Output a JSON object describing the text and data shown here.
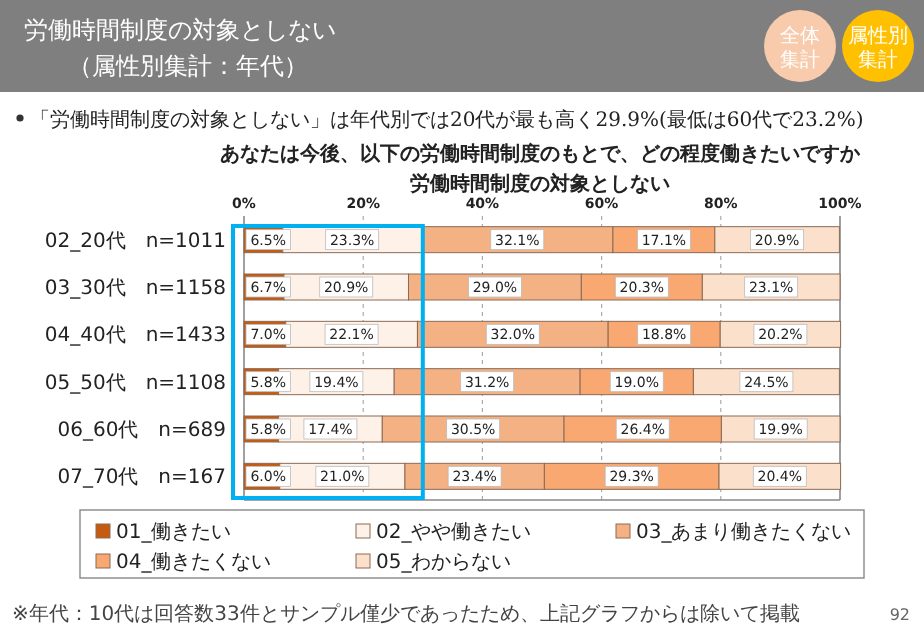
{
  "chart_data": {
    "type": "bar",
    "orientation": "horizontal",
    "stacked": true,
    "title": "労働時間制度の対象としない",
    "subtitle": "（属性別集計：年代）",
    "annotations": [
      "「労働時間制度の対象としない」は年代別では20代が最も高く29.9%(最低は60代で23.2%)",
      "あなたは今後、以下の労働時間制度のもとで、どの程度働きたいですか",
      "労働時間制度の対象としない",
      "※年代：10代は回答数33件とサンプル僅少であったため、上記グラフからは除いて掲載",
      "92",
      "全体",
      "集計",
      "属性別",
      "集計"
    ],
    "categories": [
      "02_20代　n=1011",
      "03_30代　n=1158",
      "04_40代　n=1433",
      "05_50代　n=1108",
      "06_60代　n=689",
      "07_70代　n=167"
    ],
    "xlim": [
      0,
      100
    ],
    "xticks": [
      {
        "value": 0,
        "label": "0%"
      },
      {
        "value": 20,
        "label": "20%"
      },
      {
        "value": 40,
        "label": "40%"
      },
      {
        "value": 60,
        "label": "60%"
      },
      {
        "value": 80,
        "label": "80%"
      },
      {
        "value": 100,
        "label": "100%"
      }
    ],
    "grid": "x",
    "legend": "bottom",
    "series": [
      {
        "name": "01_働きたい",
        "color": "#c55a11",
        "values": [
          6.5,
          6.7,
          7.0,
          5.8,
          5.8,
          6.0
        ],
        "value_labels": [
          "6.5%",
          "6.7%",
          "7.0%",
          "5.8%",
          "5.8%",
          "6.0%"
        ]
      },
      {
        "name": "02_やや働きたい",
        "color": "#fdf1e8",
        "values": [
          23.3,
          20.9,
          22.1,
          19.4,
          17.4,
          21.0
        ],
        "value_labels": [
          "23.3%",
          "20.9%",
          "22.1%",
          "19.4%",
          "17.4%",
          "21.0%"
        ]
      },
      {
        "name": "03_あまり働きたくない",
        "color": "#f4b183",
        "values": [
          32.1,
          29.0,
          32.0,
          31.2,
          30.5,
          23.4
        ],
        "value_labels": [
          "32.1%",
          "29.0%",
          "32.0%",
          "31.2%",
          "30.5%",
          "23.4%"
        ]
      },
      {
        "name": "04_働きたくない",
        "color": "#f8a870",
        "values": [
          17.1,
          20.3,
          18.8,
          19.0,
          26.4,
          29.3
        ],
        "value_labels": [
          "17.1%",
          "20.3%",
          "18.8%",
          "19.0%",
          "26.4%",
          "29.3%"
        ]
      },
      {
        "name": "05_わからない",
        "color": "#fbe0cc",
        "values": [
          20.9,
          23.1,
          20.2,
          24.5,
          19.9,
          20.4
        ],
        "value_labels": [
          "20.9%",
          "23.1%",
          "20.2%",
          "24.5%",
          "19.9%",
          "20.4%"
        ]
      }
    ]
  }
}
